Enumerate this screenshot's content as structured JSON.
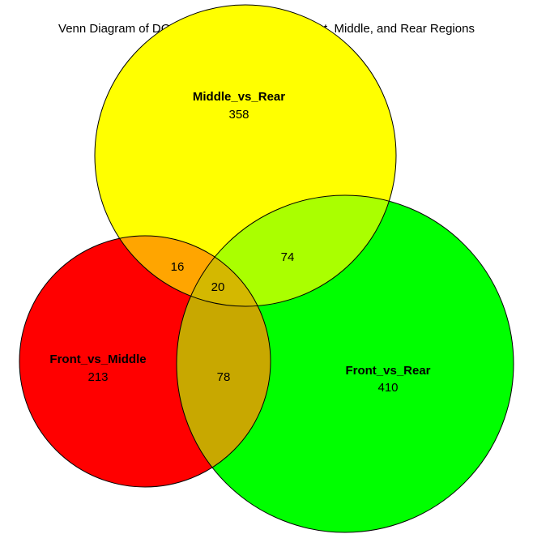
{
  "title": "Venn Diagram of DGE's for Microglia across Front, Middle, and Rear Regions",
  "sets": [
    {
      "id": "middle",
      "name": "Middle_vs_Rear",
      "only_count": "358",
      "color": "#ffff00"
    },
    {
      "id": "front_middle",
      "name": "Front_vs_Middle",
      "only_count": "213",
      "color": "#ff0000"
    },
    {
      "id": "front_rear",
      "name": "Front_vs_Rear",
      "only_count": "410",
      "color": "#00ff00"
    }
  ],
  "intersections": {
    "middle_and_front_middle": "16",
    "middle_and_front_rear": "74",
    "front_middle_and_front_rear": "78",
    "all_three": "20"
  },
  "overlap_colors": {
    "middle_and_front_middle": "#ffa500",
    "middle_and_front_rear": "#aaff00",
    "front_middle_and_front_rear": "#c8a800",
    "all_three": "#d4b800"
  }
}
